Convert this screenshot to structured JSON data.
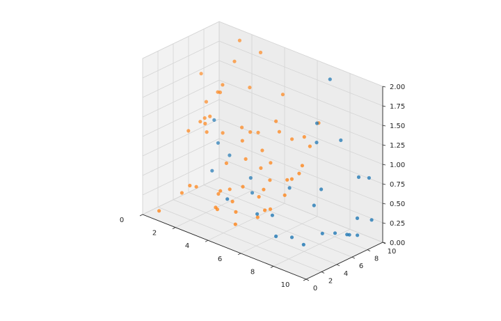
{
  "chart_data": {
    "type": "scatter",
    "title": "",
    "xlabel": "",
    "ylabel": "",
    "zlabel": "",
    "xlim": [
      0,
      10
    ],
    "ylim": [
      0,
      10
    ],
    "zlim": [
      0,
      2
    ],
    "x_ticks": [
      "0",
      "2",
      "4",
      "6",
      "8",
      "10"
    ],
    "y_ticks": [
      "0",
      "2",
      "4",
      "6",
      "8",
      "10"
    ],
    "z_ticks": [
      "0.00",
      "0.25",
      "0.50",
      "0.75",
      "1.00",
      "1.25",
      "1.50",
      "1.75",
      "2.00"
    ],
    "grid": true,
    "colors": {
      "series_1": "#1f77b4",
      "series_2": "#ff7f0e",
      "pane": "#f2f2f2",
      "grid": "#d4d4d4"
    },
    "series": [
      {
        "color": "#1f77b4",
        "points": [
          [
            7.2,
            9.1,
            1.9
          ],
          [
            7.1,
            7.6,
            1.4
          ],
          [
            8.0,
            8.8,
            1.2
          ],
          [
            6.8,
            8.2,
            1.1
          ],
          [
            9.0,
            9.0,
            0.8
          ],
          [
            9.4,
            9.5,
            0.8
          ],
          [
            7.5,
            7.3,
            0.6
          ],
          [
            9.7,
            9.2,
            0.3
          ],
          [
            9.1,
            8.6,
            0.3
          ],
          [
            7.3,
            6.8,
            0.4
          ],
          [
            8.3,
            7.4,
            0.1
          ],
          [
            8.9,
            8.0,
            0.1
          ],
          [
            8.8,
            7.9,
            0.1
          ],
          [
            9.2,
            8.4,
            0.1
          ],
          [
            6.6,
            5.4,
            0.0
          ],
          [
            7.5,
            5.0,
            0.0
          ],
          [
            6.0,
            4.6,
            0.0
          ],
          [
            7.9,
            6.6,
            0.1
          ],
          [
            4.9,
            4.5,
            0.2
          ],
          [
            1.8,
            5.5,
            1.1
          ],
          [
            1.9,
            5.8,
            0.8
          ],
          [
            2.6,
            5.8,
            0.7
          ],
          [
            3.8,
            6.0,
            0.5
          ],
          [
            3.8,
            6.2,
            0.3
          ],
          [
            3.4,
            3.8,
            0.3
          ],
          [
            2.0,
            4.8,
            0.5
          ],
          [
            5.8,
            6.8,
            0.5
          ],
          [
            5.5,
            5.2,
            0.2
          ]
        ]
      },
      {
        "color": "#ff7f0e",
        "points": [
          [
            0.3,
            7.0,
            1.5
          ],
          [
            0.8,
            6.6,
            1.2
          ],
          [
            0.8,
            6.4,
            1.0
          ],
          [
            0.9,
            5.6,
            1.0
          ],
          [
            0.6,
            4.7,
            0.9
          ],
          [
            1.2,
            5.6,
            1.0
          ],
          [
            1.3,
            5.6,
            0.9
          ],
          [
            1.4,
            5.8,
            1.1
          ],
          [
            1.6,
            6.4,
            1.4
          ],
          [
            1.8,
            6.6,
            1.5
          ],
          [
            1.7,
            6.5,
            1.4
          ],
          [
            2.2,
            7.3,
            1.8
          ],
          [
            2.0,
            8.4,
            2.0
          ],
          [
            3.0,
            9.0,
            1.9
          ],
          [
            2.9,
            7.8,
            1.5
          ],
          [
            1.9,
            6.4,
            0.9
          ],
          [
            1.2,
            3.6,
            0.3
          ],
          [
            0.9,
            3.2,
            0.2
          ],
          [
            0.3,
            1.5,
            0.0
          ],
          [
            1.5,
            3.8,
            0.3
          ],
          [
            2.6,
            4.6,
            0.3
          ],
          [
            3.2,
            4.9,
            0.2
          ],
          [
            3.5,
            4.7,
            0.1
          ],
          [
            3.6,
            5.4,
            0.4
          ],
          [
            3.4,
            6.2,
            0.7
          ],
          [
            3.1,
            6.4,
            0.9
          ],
          [
            3.3,
            7.0,
            1.0
          ],
          [
            2.7,
            7.2,
            1.0
          ],
          [
            3.6,
            7.4,
            1.0
          ],
          [
            3.9,
            7.3,
            0.8
          ],
          [
            4.5,
            7.8,
            1.2
          ],
          [
            4.8,
            7.6,
            1.1
          ],
          [
            4.5,
            8.7,
            1.5
          ],
          [
            4.5,
            7.1,
            0.7
          ],
          [
            4.6,
            6.8,
            0.5
          ],
          [
            4.5,
            6.2,
            0.4
          ],
          [
            4.3,
            6.0,
            0.3
          ],
          [
            4.9,
            5.5,
            0.2
          ],
          [
            5.0,
            6.0,
            0.2
          ],
          [
            4.6,
            5.2,
            0.1
          ],
          [
            5.7,
            6.7,
            0.6
          ],
          [
            6.2,
            7.2,
            0.7
          ],
          [
            6.3,
            7.4,
            0.8
          ],
          [
            5.8,
            7.1,
            0.6
          ],
          [
            6.0,
            8.3,
            1.1
          ],
          [
            6.6,
            8.9,
            1.3
          ],
          [
            6.3,
            8.4,
            1.0
          ],
          [
            5.6,
            6.6,
            0.4
          ],
          [
            5.2,
            8.4,
            1.0
          ],
          [
            4.0,
            6.9,
            0.6
          ],
          [
            2.5,
            4.2,
            0.1
          ],
          [
            2.7,
            4.0,
            0.1
          ],
          [
            2.5,
            5.6,
            0.6
          ],
          [
            2.8,
            5.4,
            0.3
          ],
          [
            3.8,
            4.0,
            0.0
          ],
          [
            2.2,
            5.2,
            0.2
          ]
        ]
      }
    ]
  }
}
